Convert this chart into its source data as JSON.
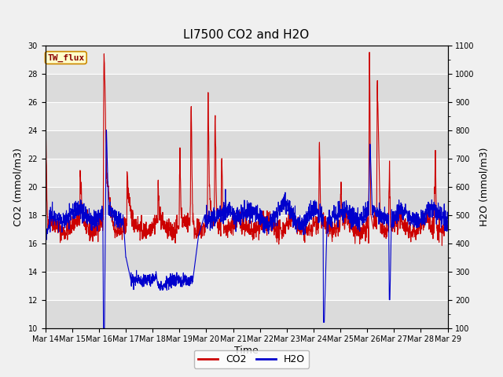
{
  "title": "LI7500 CO2 and H2O",
  "xlabel": "Time",
  "ylabel_left": "CO2 (mmol/m3)",
  "ylabel_right": "H2O (mmol/m3)",
  "ylim_left": [
    10,
    30
  ],
  "ylim_right": [
    100,
    1100
  ],
  "yticks_left": [
    10,
    12,
    14,
    16,
    18,
    20,
    22,
    24,
    26,
    28,
    30
  ],
  "yticks_right": [
    100,
    200,
    300,
    400,
    500,
    600,
    700,
    800,
    900,
    1000,
    1100
  ],
  "x_tick_labels": [
    "Mar 14",
    "Mar 15",
    "Mar 16",
    "Mar 17",
    "Mar 18",
    "Mar 19",
    "Mar 20",
    "Mar 21",
    "Mar 22",
    "Mar 23",
    "Mar 24",
    "Mar 25",
    "Mar 26",
    "Mar 27",
    "Mar 28",
    "Mar 29"
  ],
  "co2_color": "#cc0000",
  "h2o_color": "#0000cc",
  "background_color": "#f0f0f0",
  "plot_bg_color": "#e8e8e8",
  "grid_color": "#ffffff",
  "annotation_text": "TW_flux",
  "annotation_bg": "#ffffcc",
  "annotation_border": "#cc8800",
  "title_fontsize": 11,
  "axis_label_fontsize": 9,
  "tick_fontsize": 7,
  "legend_fontsize": 9,
  "line_width": 0.8,
  "figsize": [
    6.4,
    4.8
  ],
  "dpi": 100
}
